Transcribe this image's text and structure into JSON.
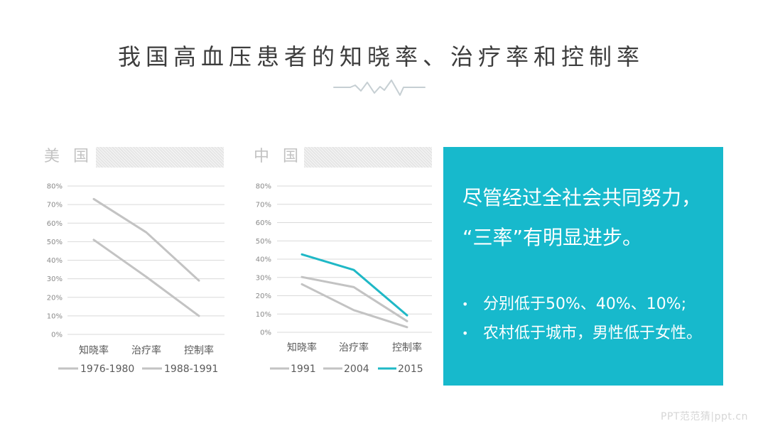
{
  "title": "我国高血压患者的知晓率、治疗率和控制率",
  "colors": {
    "accent": "#17b9cc",
    "series_gray": "#c3c3c3",
    "series_teal": "#1fb8c6",
    "gridline": "#d9d9d9",
    "decor_line": "#c6cfd3"
  },
  "summary": {
    "headline_line1": "尽管经过全社会共同努力，",
    "headline_line2": "“三率”有明显进步。",
    "bullets": [
      {
        "marker": "•",
        "text": "分别低于50%、40%、10%;"
      },
      {
        "marker": "•",
        "text": "农村低于城市，男性低于女性。"
      }
    ]
  },
  "watermark": "PPT范范猜|ppt.cn",
  "chart_data": [
    {
      "id": "us",
      "type": "line",
      "title": "美国",
      "categories": [
        "知晓率",
        "治疗率",
        "控制率"
      ],
      "series": [
        {
          "name": "1976-1980",
          "values": [
            51,
            31,
            10
          ],
          "color": "#c3c3c3"
        },
        {
          "name": "1988-1991",
          "values": [
            73,
            55,
            29
          ],
          "color": "#c3c3c3"
        }
      ],
      "yticks": [
        "0%",
        "10%",
        "20%",
        "30%",
        "40%",
        "50%",
        "60%",
        "70%",
        "80%"
      ],
      "ylim": [
        0,
        80
      ],
      "xlabel": "",
      "ylabel": "",
      "grid": true,
      "legend_position": "bottom"
    },
    {
      "id": "cn",
      "type": "line",
      "title": "中国",
      "categories": [
        "知晓率",
        "治疗率",
        "控制率"
      ],
      "series": [
        {
          "name": "1991",
          "values": [
            26.3,
            12.1,
            2.8
          ],
          "color": "#c3c3c3"
        },
        {
          "name": "2004",
          "values": [
            30.2,
            24.7,
            6.1
          ],
          "color": "#c3c3c3"
        },
        {
          "name": "2015",
          "values": [
            42.6,
            34.1,
            9.3
          ],
          "color": "#1fb8c6"
        }
      ],
      "yticks": [
        "0%",
        "10%",
        "20%",
        "30%",
        "40%",
        "50%",
        "60%",
        "70%",
        "80%"
      ],
      "ylim": [
        0,
        80
      ],
      "xlabel": "",
      "ylabel": "",
      "grid": true,
      "legend_position": "bottom"
    }
  ]
}
